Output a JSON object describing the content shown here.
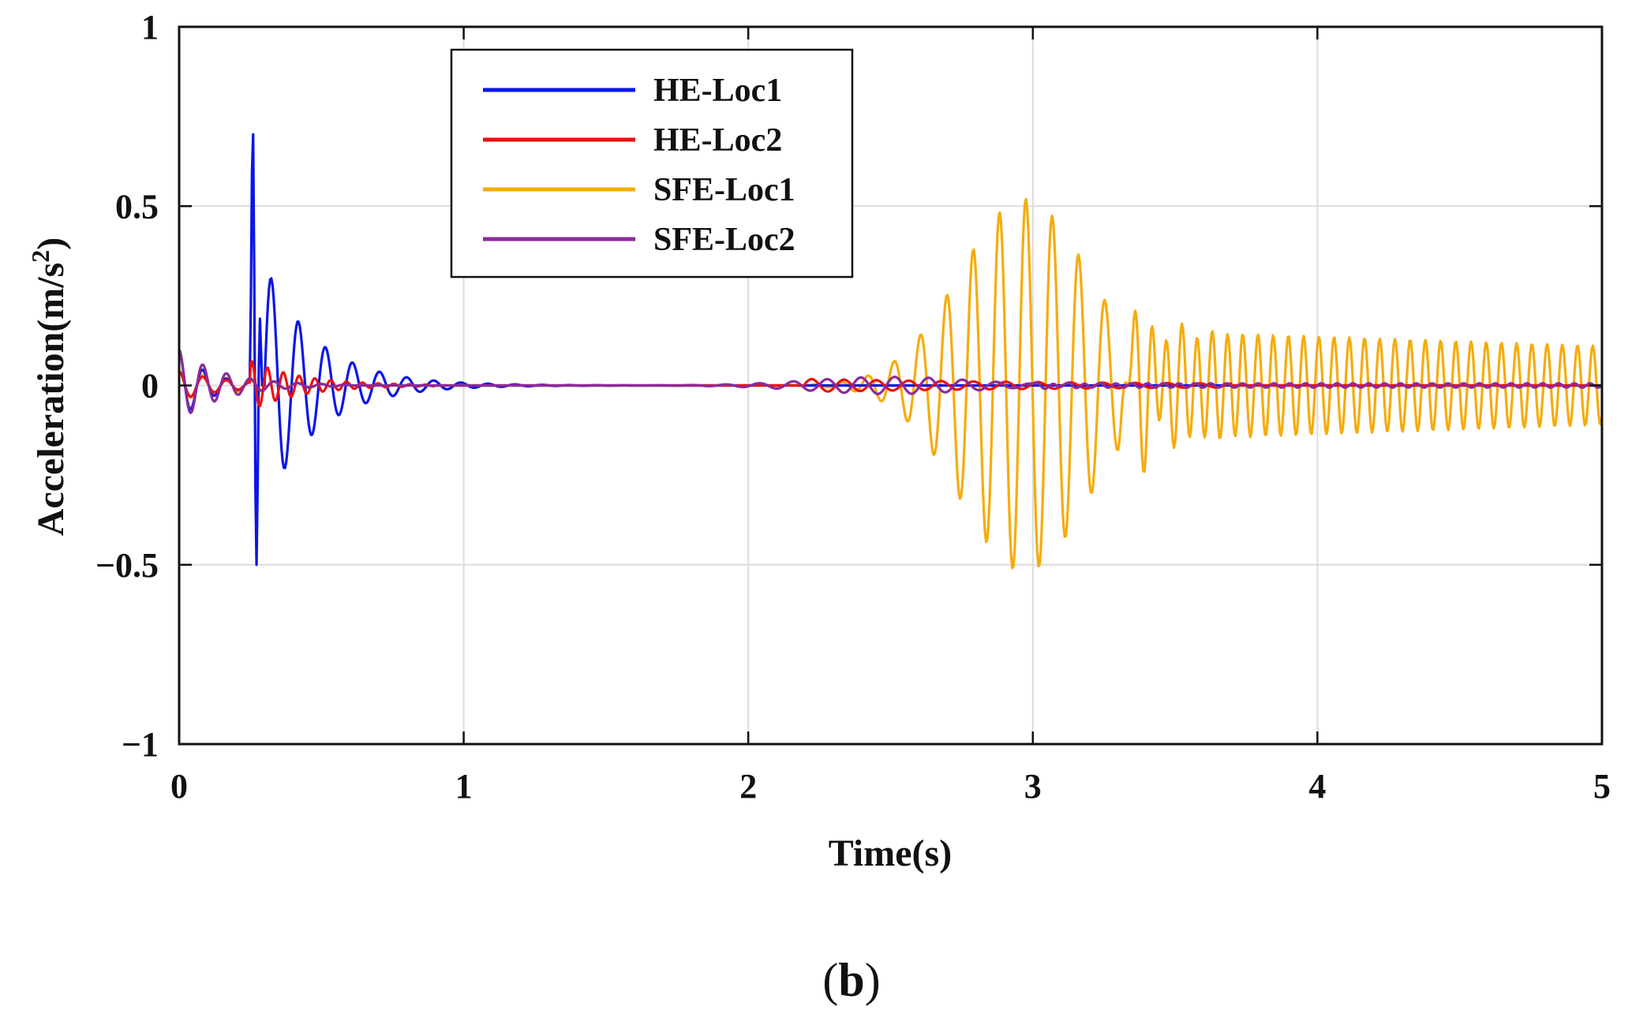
{
  "chart_data": {
    "type": "line",
    "xlabel": "Time(s)",
    "ylabel_main": "Acceleration(m/s",
    "ylabel_sup": "2",
    "ylabel_close": ")",
    "xlim": [
      0,
      5
    ],
    "ylim": [
      -1,
      1
    ],
    "xticks": [
      0,
      1,
      2,
      3,
      4,
      5
    ],
    "yticks": [
      -1,
      -0.5,
      0,
      0.5,
      1
    ],
    "xtick_labels": [
      "0",
      "1",
      "2",
      "3",
      "4",
      "5"
    ],
    "ytick_labels": [
      "−1",
      "−0.5",
      "0",
      "0.5",
      "1"
    ],
    "grid": true,
    "legend_position": "top-center",
    "sample_dt": 0.004,
    "series": [
      {
        "name": "HE-Loc1",
        "color": "#0a16e6",
        "components": [
          {
            "kind": "osc",
            "amp": 0.1,
            "freq": 12.0,
            "t0": 0.0,
            "t1": 0.26,
            "decay": 10.0,
            "phase": 1.57
          },
          {
            "kind": "spike",
            "times": [
              0.25,
              0.255,
              0.26,
              0.265,
              0.27,
              0.275,
              0.28,
              0.285,
              0.29
            ],
            "values": [
              0.0,
              0.56,
              0.7,
              0.2,
              -0.6,
              -0.35,
              0.05,
              0.22,
              0.0
            ]
          },
          {
            "kind": "osc",
            "amp": 0.34,
            "freq": 10.5,
            "t0": 0.3,
            "t1": 1.6,
            "decay": 5.4,
            "phase": 0.0
          }
        ]
      },
      {
        "name": "HE-Loc2",
        "color": "#ee1010",
        "components": [
          {
            "kind": "osc",
            "amp": 0.04,
            "freq": 12.0,
            "t0": 0.0,
            "t1": 0.25,
            "decay": 6.0,
            "phase": 1.57
          },
          {
            "kind": "osc",
            "amp": 0.07,
            "freq": 18.0,
            "t0": 0.25,
            "t1": 0.9,
            "decay": 5.5,
            "phase": 1.0
          },
          {
            "kind": "osc",
            "amp": 0.018,
            "freq": 8.8,
            "t0": 2.2,
            "t1": 3.7,
            "decay": 0.8,
            "phase": 0.3
          }
        ]
      },
      {
        "name": "SFE-Loc1",
        "color": "#f5ac0c",
        "components": [
          {
            "kind": "osc",
            "amp": 0.04,
            "freq": 12.0,
            "t0": 0.0,
            "t1": 0.6,
            "decay": 4.0,
            "phase": 1.57
          },
          {
            "kind": "gauss",
            "amp": 0.52,
            "freq": 10.8,
            "center": 2.97,
            "width": 0.32,
            "phase": 1.2
          },
          {
            "kind": "ramp",
            "a0": 0.155,
            "a1": 0.11,
            "freq": 18.7,
            "t0": 3.3,
            "t1": 5.0,
            "rise": 0.05,
            "phase": 0.4
          }
        ]
      },
      {
        "name": "SFE-Loc2",
        "color": "#8b2a9c",
        "components": [
          {
            "kind": "osc",
            "amp": 0.1,
            "freq": 12.0,
            "t0": 0.0,
            "t1": 0.6,
            "decay": 6.5,
            "phase": 1.57
          },
          {
            "kind": "gauss",
            "amp": 0.024,
            "freq": 8.4,
            "center": 2.5,
            "width": 0.4,
            "phase": 0.8
          },
          {
            "kind": "osc",
            "amp": 0.006,
            "freq": 18.0,
            "t0": 3.0,
            "t1": 5.0,
            "decay": 0.0,
            "phase": 0.0
          }
        ]
      }
    ]
  },
  "caption": {
    "open": "(",
    "letter": "b",
    "close": ")"
  }
}
